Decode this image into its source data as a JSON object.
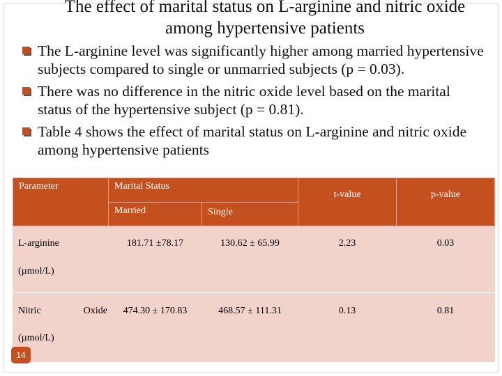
{
  "title": "The effect of marital status on L-arginine and nitric oxide among hypertensive patients",
  "bullets": [
    "The L-arginine level was significantly higher among married hypertensive subjects compared to single or unmarried subjects (p = 0.03).",
    "There was no difference in the nitric oxide level based on the marital status of the hypertensive subject (p = 0.81).",
    "Table 4 shows the effect of marital status on L-arginine and nitric oxide among hypertensive patients"
  ],
  "table": {
    "header": {
      "parameter": "Parameter",
      "marital_status": "Marital Status",
      "married": "Married",
      "single": "Single",
      "t_value": "t-value",
      "p_value": "p-value"
    },
    "rows": [
      {
        "parameter": "L-arginine",
        "unit": "(µmol/L)",
        "married": "181.71 ±78.17",
        "single": "130.62 ± 65.99",
        "t_value": "2.23",
        "p_value": "0.03"
      },
      {
        "parameter": "Nitric Oxide",
        "unit": "(µmol/L)",
        "married": "474.30 ± 170.83",
        "single": "468.57 ± 111.31",
        "t_value": "0.13",
        "p_value": "0.81"
      }
    ]
  },
  "slide_number": "14"
}
